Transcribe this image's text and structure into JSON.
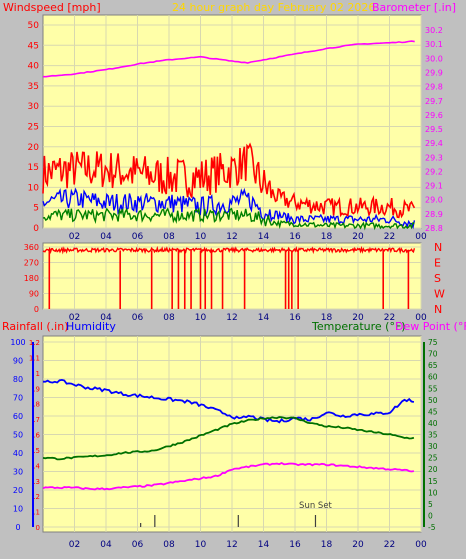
{
  "chart_data": [
    {
      "type": "line",
      "title": "24 hour graph day   February 02 2026",
      "left_axis_label": "Windspeed [mph]",
      "right_axis_label": "Barometer [.in]",
      "ylim": [
        0,
        50
      ],
      "y_ticks": [
        0,
        5,
        10,
        15,
        20,
        25,
        30,
        35,
        40,
        45,
        50
      ],
      "y2lim": [
        28.8,
        30.25
      ],
      "y2_ticks": [
        28.8,
        28.9,
        29.0,
        29.1,
        29.2,
        29.3,
        29.4,
        29.5,
        29.6,
        29.7,
        29.8,
        29.9,
        30.0,
        30.1,
        30.2
      ],
      "x_ticks": [
        "02",
        "04",
        "06",
        "08",
        "10",
        "12",
        "14",
        "16",
        "18",
        "20",
        "22",
        "00"
      ],
      "x_range_hours": [
        0,
        24
      ],
      "colors": {
        "gust": "#ff0000",
        "wind": "#0000ff",
        "avg": "#008000",
        "barometer": "#ff00ff"
      },
      "series": [
        {
          "key": "barometer",
          "axis": "right",
          "x": [
            0,
            2,
            4,
            6,
            8,
            10,
            12,
            13,
            14,
            16,
            18,
            20,
            22,
            23.5
          ],
          "values": [
            29.87,
            29.89,
            29.92,
            29.96,
            29.99,
            30.01,
            29.98,
            29.97,
            29.99,
            30.03,
            30.07,
            30.1,
            30.11,
            30.12
          ]
        },
        {
          "key": "gust",
          "axis": "left",
          "x": [
            0,
            2,
            4,
            6,
            8,
            10,
            12,
            13,
            14,
            15,
            16,
            18,
            20,
            22,
            23.5
          ],
          "values": [
            13,
            14,
            14,
            13,
            12,
            12,
            14,
            16,
            10,
            7,
            6,
            5,
            5,
            5,
            4
          ]
        },
        {
          "key": "wind",
          "axis": "left",
          "x": [
            0,
            2,
            4,
            6,
            8,
            10,
            12,
            13,
            14,
            15,
            16,
            18,
            20,
            22,
            23.5
          ],
          "values": [
            6,
            7,
            6,
            6,
            6,
            5,
            6,
            7,
            4,
            3,
            2,
            2,
            2,
            2,
            1
          ]
        },
        {
          "key": "avg",
          "axis": "left",
          "x": [
            0,
            2,
            4,
            6,
            8,
            10,
            12,
            13,
            14,
            15,
            16,
            18,
            20,
            22,
            23.5
          ],
          "values": [
            3,
            3,
            3,
            3,
            3,
            3,
            3,
            3,
            2,
            1,
            1,
            0.5,
            0.5,
            0.5,
            0.5
          ]
        }
      ]
    },
    {
      "type": "line",
      "title": "",
      "ylim": [
        0,
        360
      ],
      "y_ticks": [
        0,
        90,
        180,
        270,
        360
      ],
      "y_tick_labels": [
        "0",
        "90",
        "180",
        "270",
        "360"
      ],
      "right_labels": [
        "N",
        "W",
        "S",
        "E",
        "N"
      ],
      "x_ticks": [
        "02",
        "04",
        "06",
        "08",
        "10",
        "12",
        "14",
        "16",
        "18",
        "20",
        "22",
        "00"
      ],
      "x_range_hours": [
        0,
        24
      ],
      "colors": {
        "direction": "#ff0000"
      },
      "series": [
        {
          "key": "direction",
          "base_value": 340,
          "drop_value": 0,
          "drop_hours": [
            0.4,
            4.9,
            6.9,
            8.2,
            8.6,
            9.0,
            9.4,
            10.0,
            10.3,
            10.7,
            11.4,
            12.8,
            15.4,
            15.6,
            15.8,
            16.2,
            21.6,
            23.2
          ]
        }
      ]
    },
    {
      "type": "line",
      "left_axis_label_1": "Rainfall (.in)",
      "left_axis_label_2": "Humidity",
      "right_axis_label_1": "Temperature (°F)",
      "right_axis_label_2": "Dew Point (°F)",
      "rain_ticks": [
        "0",
        ".1",
        ".2",
        ".3",
        ".4",
        ".5",
        ".6",
        ".7",
        ".8",
        ".9",
        "1",
        "1.1",
        "1.2"
      ],
      "humidity_ylim": [
        0,
        100
      ],
      "humidity_ticks": [
        0,
        10,
        20,
        30,
        40,
        50,
        60,
        70,
        80,
        90,
        100
      ],
      "temp_ylim": [
        -5,
        75
      ],
      "temp_ticks": [
        -5,
        0,
        5,
        10,
        15,
        20,
        25,
        30,
        35,
        40,
        45,
        50,
        55,
        60,
        65,
        70,
        75
      ],
      "x_ticks": [
        "02",
        "04",
        "06",
        "08",
        "10",
        "12",
        "14",
        "16",
        "18",
        "20",
        "22",
        "00"
      ],
      "x_range_hours": [
        0,
        24
      ],
      "annotation": {
        "text": "Sun Set",
        "hour": 17.3
      },
      "event_marks_hours": [
        6.2,
        7.1,
        12.4,
        17.3
      ],
      "colors": {
        "humidity": "#0000ff",
        "temperature": "#007000",
        "dewpoint": "#ff00ff",
        "rain": "#ff0000"
      },
      "series": [
        {
          "key": "humidity",
          "axis": "humidity",
          "x": [
            0,
            1,
            2,
            3,
            4,
            5,
            6,
            7,
            8,
            9,
            10,
            11,
            12,
            12.5,
            13,
            14,
            15,
            16,
            17,
            18,
            19,
            20,
            21,
            22,
            23,
            23.5
          ],
          "values": [
            78,
            79,
            77,
            75,
            74,
            72,
            71,
            70,
            69,
            68,
            66,
            63,
            60,
            58,
            60,
            58,
            57,
            59,
            58,
            62,
            60,
            61,
            61,
            62,
            69,
            68
          ]
        },
        {
          "key": "temperature",
          "axis": "temp",
          "x": [
            0,
            1,
            2,
            3,
            4,
            5,
            6,
            7,
            8,
            9,
            10,
            11,
            12,
            13,
            14,
            15,
            16,
            17,
            18,
            19,
            20,
            21,
            22,
            23,
            23.5
          ],
          "values": [
            25,
            24.5,
            25,
            25.5,
            26,
            27,
            27.5,
            28,
            30,
            32,
            34.5,
            37,
            39.5,
            41,
            42,
            42.5,
            42,
            40,
            38.5,
            38,
            37,
            36,
            35,
            33.5,
            33.5
          ]
        },
        {
          "key": "dewpoint",
          "axis": "temp",
          "x": [
            0,
            1,
            2,
            3,
            4,
            5,
            6,
            7,
            8,
            9,
            10,
            11,
            12,
            13,
            14,
            15,
            16,
            17,
            18,
            19,
            20,
            21,
            22,
            23,
            23.5
          ],
          "values": [
            12,
            12,
            12,
            11.5,
            11.5,
            12,
            12.5,
            13,
            14,
            15,
            16,
            17,
            20,
            21,
            22,
            22.5,
            22,
            22,
            22,
            21.5,
            21,
            20.5,
            20,
            19.5,
            19
          ]
        }
      ]
    }
  ]
}
